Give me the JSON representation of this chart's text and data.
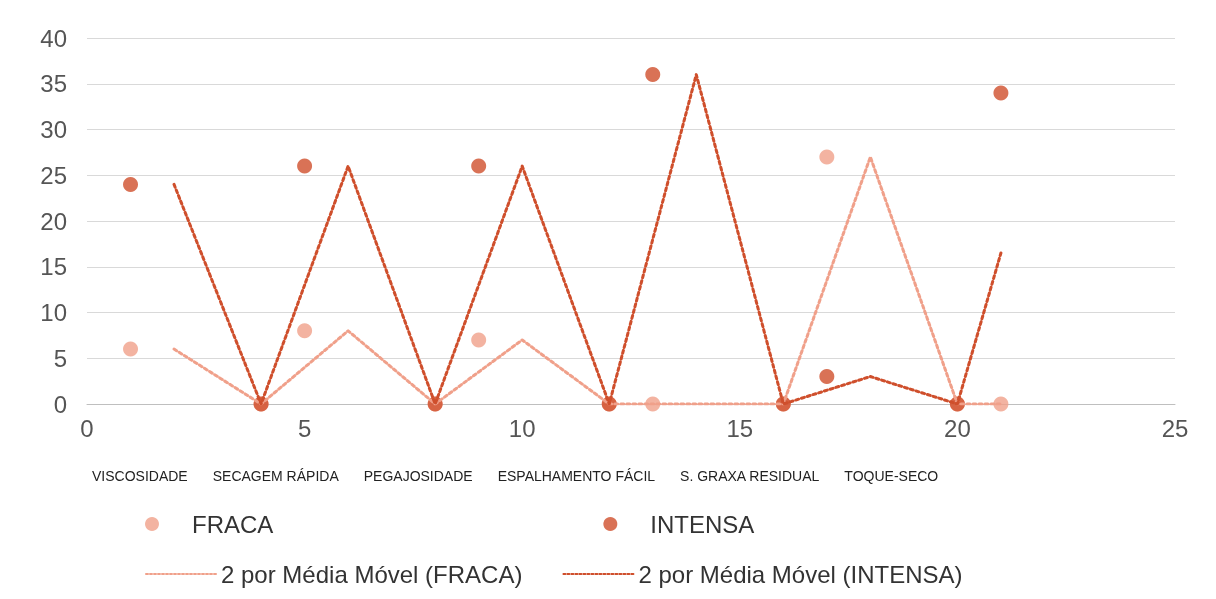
{
  "chart_data": {
    "type": "scatter",
    "xlim": [
      0,
      25
    ],
    "xticks": [
      0,
      5,
      10,
      15,
      20,
      25
    ],
    "ylim": [
      0,
      40
    ],
    "yticks": [
      0,
      5,
      10,
      15,
      20,
      25,
      30,
      35,
      40
    ],
    "grid": "y",
    "legend": "bottom",
    "marker": "circle",
    "series": [
      {
        "name": "FRACA",
        "color": "#f0a08a",
        "x": [
          1,
          4,
          5,
          8,
          9,
          12,
          13,
          16,
          17,
          20,
          21
        ],
        "values": [
          6,
          0,
          8,
          0,
          7,
          0,
          0,
          0,
          27,
          0,
          0
        ]
      },
      {
        "name": "INTENSA",
        "color": "#cf4f2c",
        "x": [
          1,
          4,
          5,
          8,
          9,
          12,
          13,
          16,
          17,
          20,
          21
        ],
        "values": [
          24,
          0,
          26,
          0,
          26,
          0,
          36,
          0,
          3,
          0,
          34
        ]
      },
      {
        "name": "2 por Média Móvel (FRACA)",
        "type": "line",
        "line_style": "dotted",
        "marker": "none",
        "color": "#f0a08a",
        "x": [
          2,
          4,
          6,
          8,
          10,
          12,
          14,
          16,
          18,
          20,
          21
        ],
        "values": [
          6,
          0,
          8,
          0,
          7,
          0,
          0,
          0,
          27,
          0,
          0
        ]
      },
      {
        "name": "2 por Média Móvel (INTENSA)",
        "type": "line",
        "line_style": "dotted",
        "marker": "none",
        "color": "#cf4f2c",
        "x": [
          2,
          4,
          6,
          8,
          10,
          12,
          14,
          16,
          18,
          20,
          21
        ],
        "values": [
          24,
          0,
          26,
          0,
          26,
          0,
          36,
          0,
          3,
          0,
          16.5
        ]
      }
    ],
    "annotations": [
      "VISCOSIDADE",
      "SECAGEM RÁPIDA",
      "PEGAJOSIDADE",
      "ESPALHAMENTO FÁCIL",
      "S. GRAXA RESIDUAL",
      "TOQUE-SECO"
    ]
  }
}
